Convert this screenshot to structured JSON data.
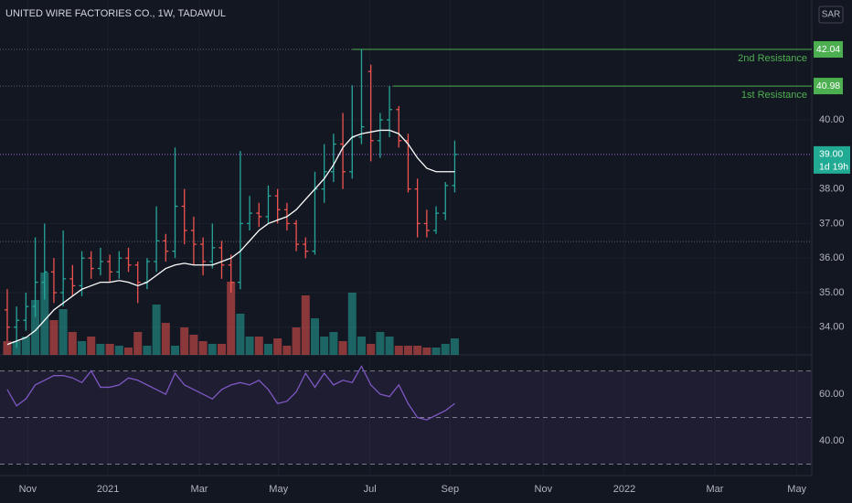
{
  "chart_data": {
    "type": "ohlc",
    "title": "UNITED WIRE FACTORIES CO., 1W, TADAWUL",
    "currency": "SAR",
    "xlim": [
      -0.78,
      86.3
    ],
    "xticks": [
      {
        "value": 2.2,
        "label": "Nov"
      },
      {
        "value": 10.8,
        "label": "2021"
      },
      {
        "value": 20.6,
        "label": "Mar"
      },
      {
        "value": 29.1,
        "label": "May"
      },
      {
        "value": 38.9,
        "label": "Jul"
      },
      {
        "value": 47.5,
        "label": "Sep"
      },
      {
        "value": 57.5,
        "label": "Nov"
      },
      {
        "value": 66.2,
        "label": "2022"
      },
      {
        "value": 75.9,
        "label": "Mar"
      },
      {
        "value": 84.7,
        "label": "May"
      }
    ],
    "ylim": [
      33.2,
      43.47
    ],
    "yticks": [
      {
        "value": 34,
        "label": "34.00"
      },
      {
        "value": 35,
        "label": "35.00"
      },
      {
        "value": 36,
        "label": "36.00"
      },
      {
        "value": 37,
        "label": "37.00"
      },
      {
        "value": 38,
        "label": "38.00"
      },
      {
        "value": 40,
        "label": "40.00"
      }
    ],
    "up_color": "#26a69a",
    "down_color": "#ef5350",
    "open": [
      34.5,
      34.0,
      34.2,
      34.6,
      35.3,
      35.6,
      35.0,
      35.4,
      35.2,
      36.0,
      35.7,
      35.9,
      35.6,
      36.0,
      35.8,
      35.3,
      35.9,
      36.5,
      36.2,
      37.5,
      36.8,
      36.4,
      35.9,
      36.3,
      35.8,
      35.3,
      37.0,
      37.3,
      37.2,
      37.8,
      37.4,
      37.0,
      36.4,
      36.2,
      38.0,
      38.5,
      39.3,
      38.5,
      39.5,
      41.4,
      39.4,
      40.0,
      40.3,
      39.4,
      38.0,
      37.0,
      36.8,
      37.3,
      38.1
    ],
    "high": [
      35.1,
      34.6,
      35.0,
      36.6,
      37.0,
      36.0,
      36.8,
      35.8,
      36.2,
      36.2,
      36.3,
      36.1,
      36.2,
      36.3,
      35.9,
      36.0,
      37.5,
      36.7,
      39.2,
      38.0,
      37.2,
      36.6,
      37.0,
      36.5,
      36.1,
      39.1,
      37.8,
      37.6,
      38.1,
      38.0,
      37.6,
      37.1,
      36.6,
      38.5,
      39.3,
      39.6,
      40.2,
      41.0,
      42.04,
      41.6,
      40.2,
      40.98,
      40.4,
      39.6,
      38.3,
      37.4,
      37.5,
      38.2,
      39.4
    ],
    "low": [
      33.6,
      33.4,
      33.9,
      34.3,
      34.8,
      34.7,
      34.6,
      34.9,
      34.9,
      35.4,
      35.5,
      35.3,
      35.4,
      35.6,
      34.7,
      35.1,
      35.6,
      35.9,
      36.0,
      36.4,
      35.8,
      35.5,
      35.7,
      35.4,
      35.0,
      35.1,
      36.8,
      36.9,
      37.0,
      37.0,
      36.8,
      36.2,
      36.0,
      36.1,
      37.6,
      38.2,
      38.0,
      38.3,
      39.3,
      38.8,
      38.9,
      39.5,
      39.2,
      37.9,
      36.6,
      36.6,
      36.7,
      37.1,
      37.9
    ],
    "close": [
      34.0,
      34.2,
      34.6,
      35.3,
      35.6,
      35.0,
      35.4,
      35.2,
      36.0,
      35.7,
      35.9,
      35.6,
      36.0,
      35.8,
      35.3,
      35.9,
      36.5,
      36.2,
      37.5,
      36.8,
      36.4,
      35.9,
      36.3,
      35.8,
      35.3,
      37.0,
      37.3,
      37.2,
      37.8,
      37.4,
      37.0,
      36.4,
      36.2,
      38.0,
      38.5,
      39.3,
      38.5,
      39.5,
      39.8,
      39.4,
      40.0,
      40.3,
      39.4,
      38.0,
      37.0,
      36.8,
      37.3,
      38.1,
      39.0
    ],
    "volume": [
      15,
      15,
      20,
      60,
      90,
      38,
      50,
      25,
      15,
      20,
      12,
      12,
      10,
      8,
      25,
      10,
      55,
      35,
      10,
      30,
      22,
      15,
      12,
      12,
      80,
      45,
      20,
      20,
      12,
      18,
      10,
      30,
      65,
      40,
      20,
      25,
      15,
      68,
      20,
      12,
      25,
      20,
      10,
      10,
      10,
      8,
      8,
      12,
      18
    ],
    "ma": {
      "color": "#ffffff",
      "values": [
        33.5,
        33.6,
        33.7,
        33.9,
        34.2,
        34.5,
        34.7,
        34.9,
        35.1,
        35.2,
        35.3,
        35.3,
        35.35,
        35.3,
        35.2,
        35.3,
        35.5,
        35.7,
        35.8,
        35.85,
        35.8,
        35.8,
        35.8,
        35.9,
        36.0,
        36.2,
        36.5,
        36.8,
        37.0,
        37.1,
        37.2,
        37.4,
        37.7,
        38.0,
        38.3,
        38.7,
        39.2,
        39.5,
        39.6,
        39.65,
        39.7,
        39.7,
        39.6,
        39.3,
        38.9,
        38.6,
        38.5,
        38.5,
        38.5
      ]
    },
    "levels": [
      {
        "value": 42.04,
        "label": "42.04",
        "text": "2nd  Resistance",
        "from": 37.0,
        "color": "#4caf50"
      },
      {
        "value": 40.98,
        "label": "40.98",
        "text": "1st  Resistance",
        "from": 41.4,
        "color": "#4caf50"
      }
    ],
    "guide": 36.48,
    "current": {
      "value": 39,
      "label": "39.00",
      "countdown": "1d 19h",
      "color": "#22ab94",
      "line_color": "#9c6ade"
    },
    "rsi": {
      "color": "#7e57c2",
      "ylim": [
        25.1,
        76.9
      ],
      "yticks": [
        {
          "value": 40,
          "label": "40.00"
        },
        {
          "value": 60,
          "label": "60.00"
        }
      ],
      "bands": [
        30,
        50,
        70
      ],
      "values": [
        62,
        55,
        58,
        64,
        66,
        68,
        68,
        67,
        65,
        70,
        63,
        63,
        64,
        67,
        66,
        64,
        62,
        60,
        69,
        64,
        62,
        60,
        58,
        62,
        64,
        65,
        64,
        66,
        62,
        56,
        57,
        61,
        69,
        63,
        69,
        64,
        66,
        65,
        72,
        64,
        60,
        59,
        64,
        56,
        50,
        49,
        51,
        53,
        56
      ]
    }
  }
}
